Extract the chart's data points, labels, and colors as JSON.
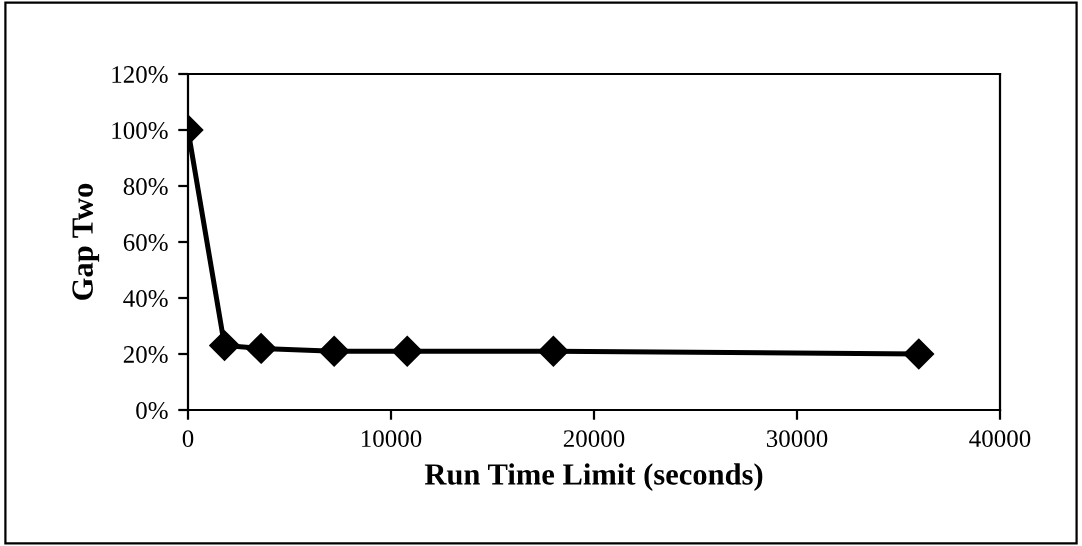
{
  "chart_data": {
    "type": "line",
    "xlabel": "Run Time Limit (seconds)",
    "ylabel": "Gap Two",
    "x": [
      0,
      1800,
      3600,
      7200,
      10800,
      18000,
      36000
    ],
    "series": [
      {
        "color": "#000000",
        "values": [
          100,
          23,
          22,
          21,
          21,
          21,
          20
        ]
      }
    ],
    "xlim": [
      0,
      40000
    ],
    "xticks": [
      0,
      10000,
      20000,
      30000,
      40000
    ],
    "ylim": [
      0,
      120
    ],
    "yticks": [
      {
        "value": 0,
        "label": "0%"
      },
      {
        "value": 20,
        "label": "20%"
      },
      {
        "value": 40,
        "label": "40%"
      },
      {
        "value": 60,
        "label": "60%"
      },
      {
        "value": 80,
        "label": "80%"
      },
      {
        "value": 100,
        "label": "100%"
      },
      {
        "value": 120,
        "label": "120%"
      }
    ],
    "marker": "diamond",
    "line_style": "solid",
    "grid": false,
    "legend": false
  }
}
